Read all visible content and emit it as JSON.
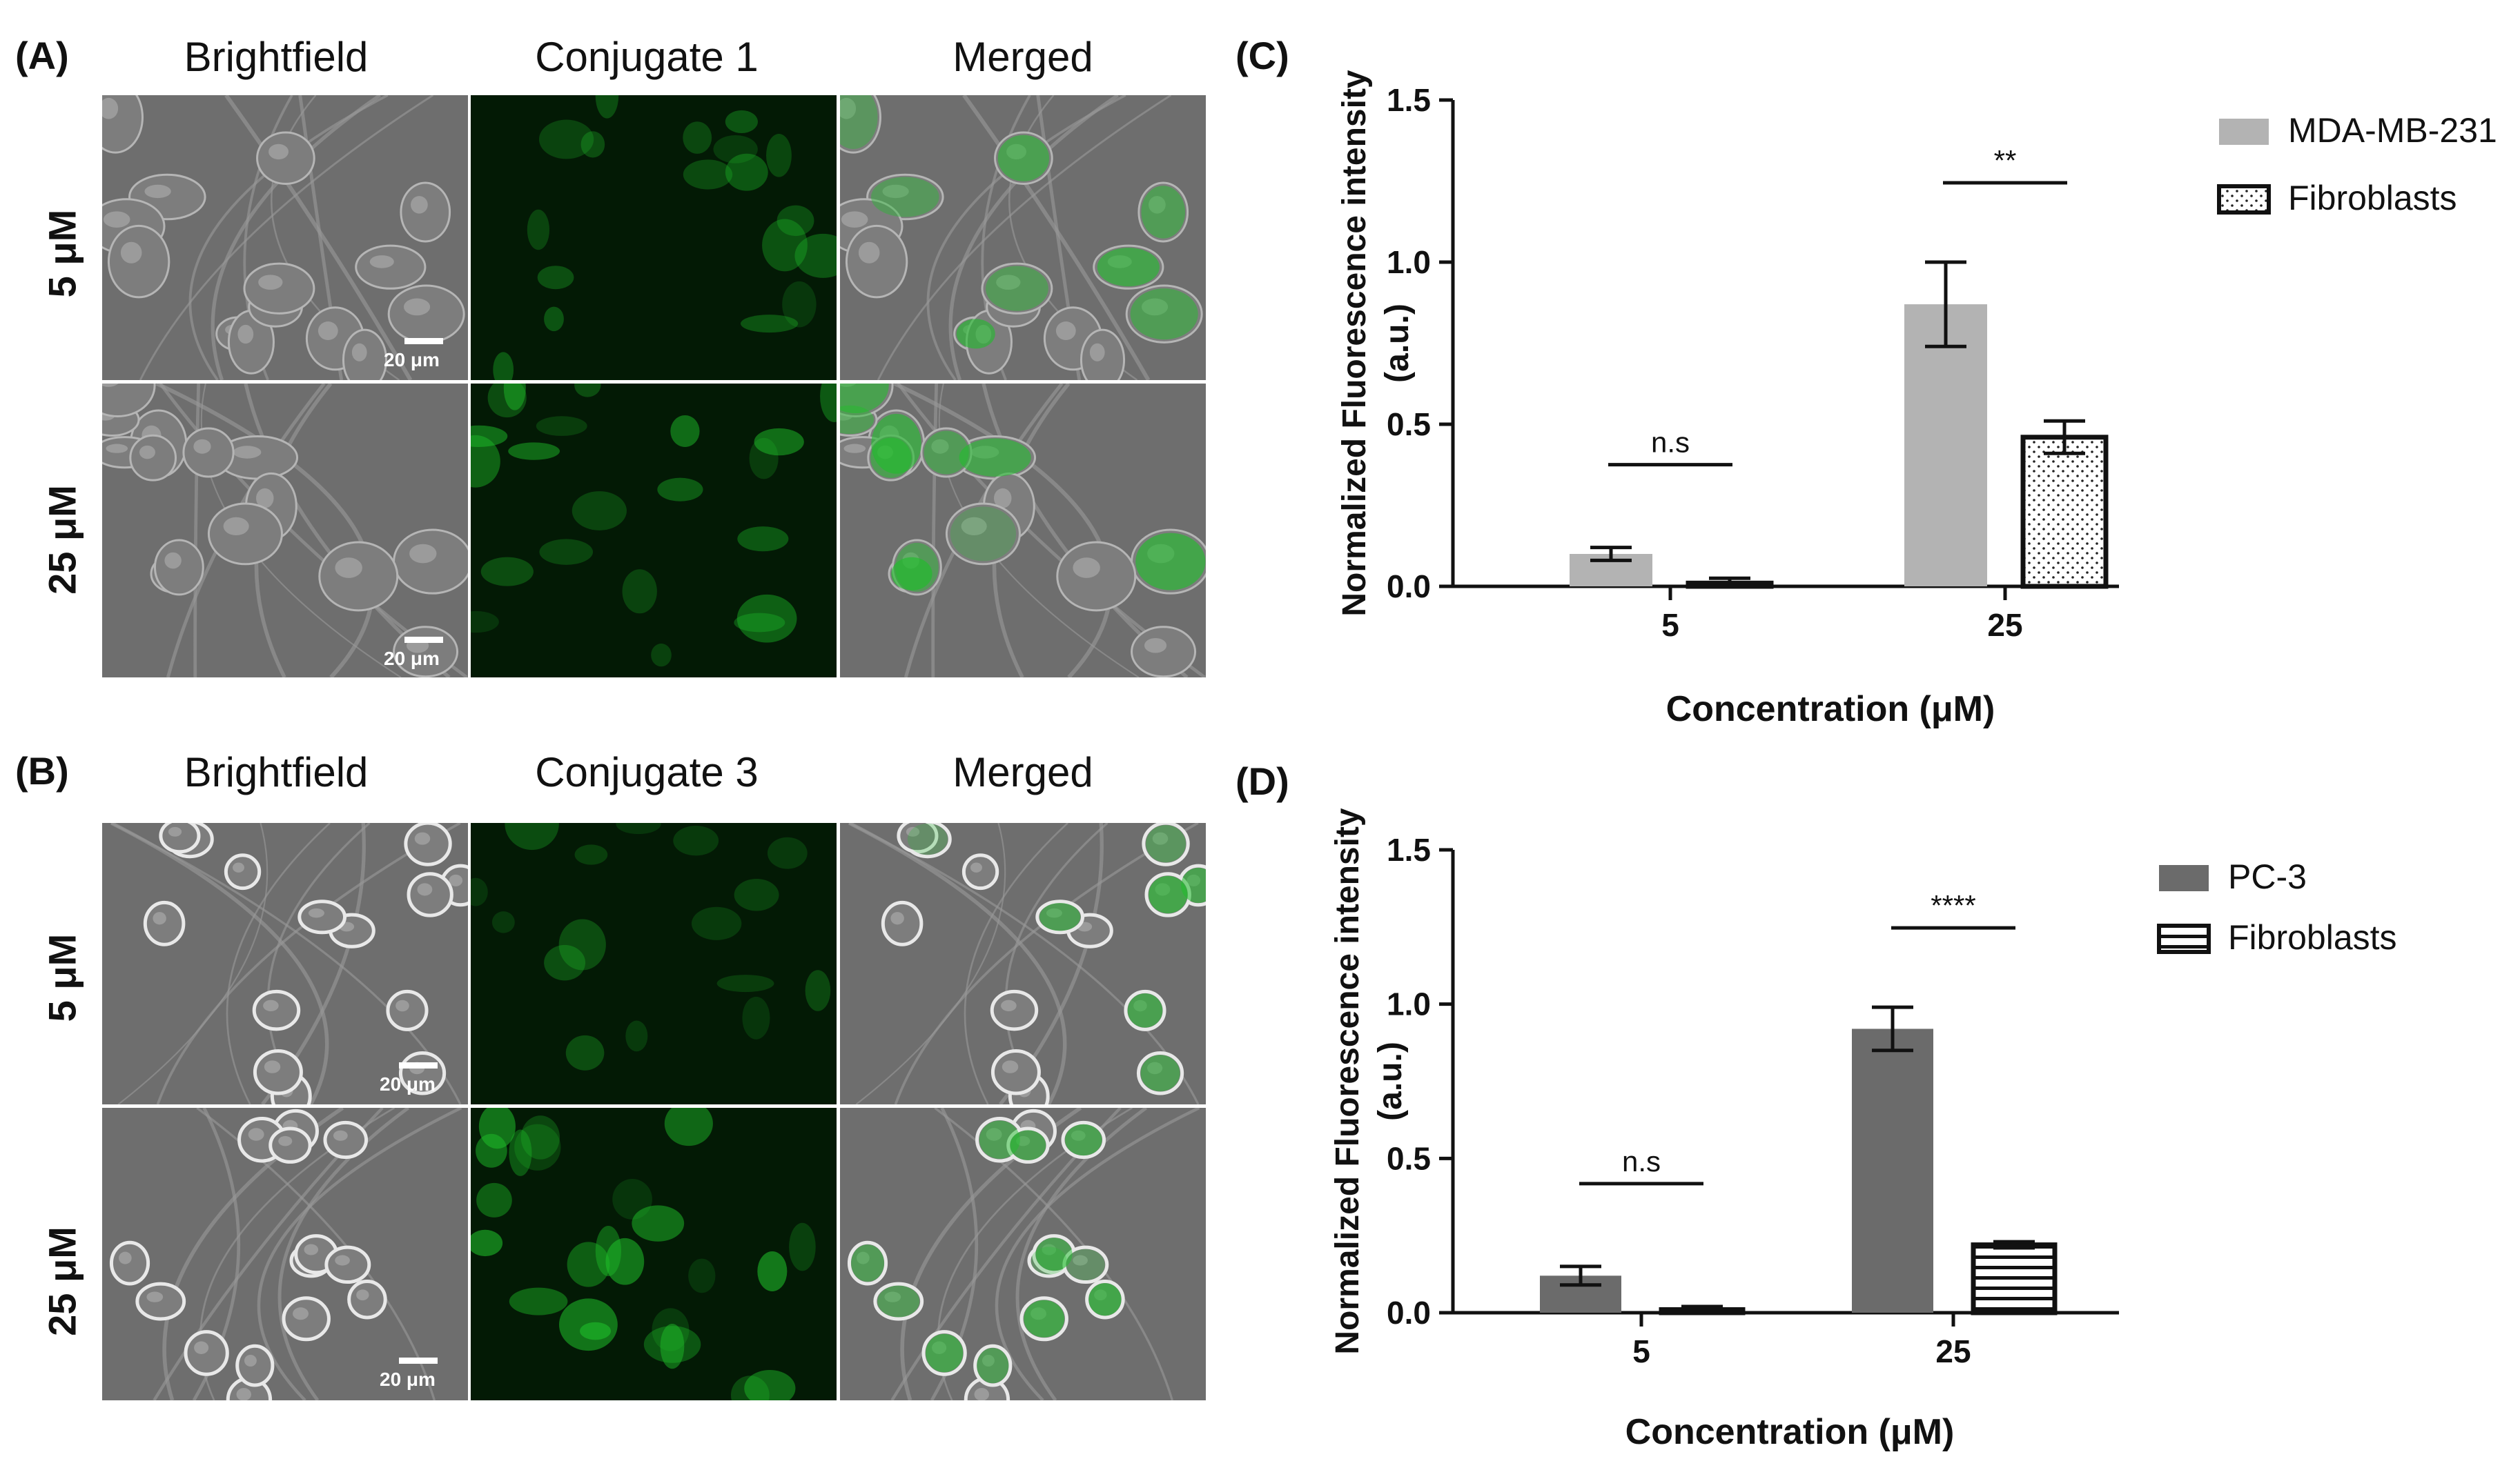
{
  "panels": {
    "A": {
      "letter": "(A)",
      "columns": [
        "Brightfield",
        "Conjugate  1",
        "Merged"
      ],
      "rows": [
        "5 μM",
        "25 μM"
      ],
      "scale": "20 μm"
    },
    "B": {
      "letter": "(B)",
      "columns": [
        "Brightfield",
        "Conjugate  3",
        "Merged"
      ],
      "rows": [
        "5 μM",
        "25 μM"
      ],
      "scale": "20 μm"
    }
  },
  "colors": {
    "gray_bar": "#b3b3b3",
    "dark_bar": "#6b6b6b",
    "fluor_green": "#1fbf2a",
    "micro_bg": "#6e6e6e"
  },
  "chart_data": [
    {
      "letter": "(C)",
      "type": "bar",
      "categories": [
        "5",
        "25"
      ],
      "xlabel": "Concentration (μM)",
      "ylabel": "Normalized Fluorescence intensity\n(a.u.)",
      "ylim": [
        0,
        1.5
      ],
      "yticks": [
        "0.0",
        "0.5",
        "1.0",
        "1.5"
      ],
      "series": [
        {
          "name": "MDA-MB-231",
          "values": [
            0.1,
            0.87
          ],
          "errors": [
            0.02,
            0.13
          ],
          "fill": "solid-light"
        },
        {
          "name": "Fibroblasts",
          "values": [
            0.01,
            0.46
          ],
          "errors": [
            0.015,
            0.05
          ],
          "fill": "dotted"
        }
      ],
      "significance": [
        "n.s",
        "**"
      ],
      "legend_placement": "top-right",
      "grid": false
    },
    {
      "letter": "(D)",
      "type": "bar",
      "categories": [
        "5",
        "25"
      ],
      "xlabel": "Concentration (μM)",
      "ylabel": "Normalized Fluorescence intensity\n(a.u.)",
      "ylim": [
        0,
        1.5
      ],
      "yticks": [
        "0.0",
        "0.5",
        "1.0",
        "1.5"
      ],
      "series": [
        {
          "name": "PC-3",
          "values": [
            0.12,
            0.92
          ],
          "errors": [
            0.03,
            0.07
          ],
          "fill": "solid-dark"
        },
        {
          "name": "Fibroblasts",
          "values": [
            0.01,
            0.22
          ],
          "errors": [
            0.01,
            0.01
          ],
          "fill": "striped"
        }
      ],
      "significance": [
        "n.s",
        "****"
      ],
      "legend_placement": "top-right",
      "grid": false
    }
  ]
}
